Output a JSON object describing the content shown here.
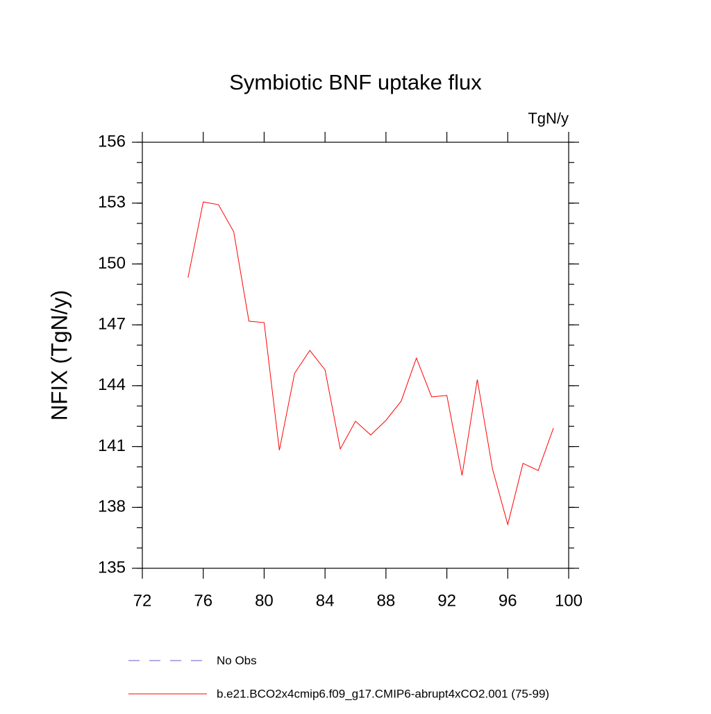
{
  "chart_data": {
    "type": "line",
    "title": "Symbiotic BNF uptake flux",
    "units": "TgN/y",
    "ylabel": "NFIX  (TgN/y)",
    "x": [
      75,
      76,
      77,
      78,
      79,
      80,
      81,
      82,
      83,
      84,
      85,
      86,
      87,
      88,
      89,
      90,
      91,
      92,
      93,
      94,
      95,
      96,
      97,
      98,
      99
    ],
    "series": [
      {
        "name": "No Obs",
        "color": "#6a5acd",
        "dash": true,
        "values": [
          null,
          null,
          null,
          null,
          null,
          null,
          null,
          null,
          null,
          null,
          null,
          null,
          null,
          null,
          null,
          null,
          null,
          null,
          null,
          null,
          null,
          null,
          null,
          null,
          null
        ]
      },
      {
        "name": "b.e21.BCO2x4cmip6.f09_g17.CMIP6-abrupt4xCO2.001 (75-99)",
        "color": "#ff0000",
        "dash": false,
        "values": [
          149.33,
          153.06,
          152.92,
          151.59,
          147.18,
          147.11,
          140.82,
          144.61,
          145.74,
          144.78,
          140.88,
          142.25,
          141.57,
          142.29,
          143.24,
          145.36,
          143.45,
          143.52,
          139.58,
          144.3,
          139.89,
          137.16,
          140.17,
          139.82,
          141.91
        ]
      }
    ],
    "xlim": [
      72,
      100
    ],
    "xticks": [
      72,
      76,
      80,
      84,
      88,
      92,
      96,
      100
    ],
    "ylim": [
      135,
      156
    ],
    "yticks": [
      135,
      138,
      141,
      144,
      147,
      150,
      153,
      156
    ],
    "yminor": 1
  }
}
